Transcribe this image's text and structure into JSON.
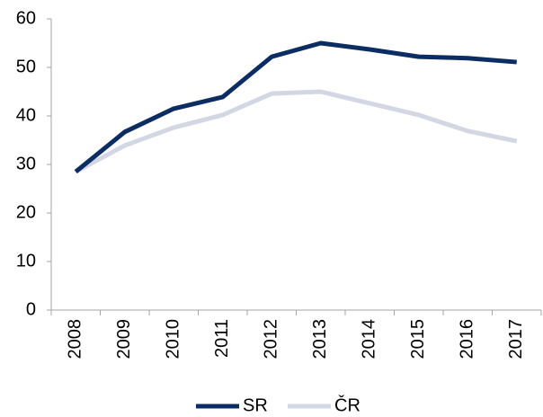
{
  "chart_data": {
    "type": "line",
    "categories": [
      "2008",
      "2009",
      "2010",
      "2011",
      "2012",
      "2013",
      "2014",
      "2015",
      "2016",
      "2017"
    ],
    "series": [
      {
        "name": "SR",
        "color": "#0b2d63",
        "values": [
          28.5,
          36.7,
          41.5,
          43.9,
          52.2,
          55.0,
          53.7,
          52.2,
          51.9,
          51.1
        ]
      },
      {
        "name": "ČR",
        "color": "#d3d7e4",
        "values": [
          28.5,
          33.9,
          37.6,
          40.2,
          44.6,
          45.0,
          42.6,
          40.2,
          36.9,
          34.8
        ]
      }
    ],
    "ylim": [
      0,
      60
    ],
    "yticks": [
      0,
      10,
      20,
      30,
      40,
      50,
      60
    ],
    "grid": false,
    "legend": "bottom"
  }
}
